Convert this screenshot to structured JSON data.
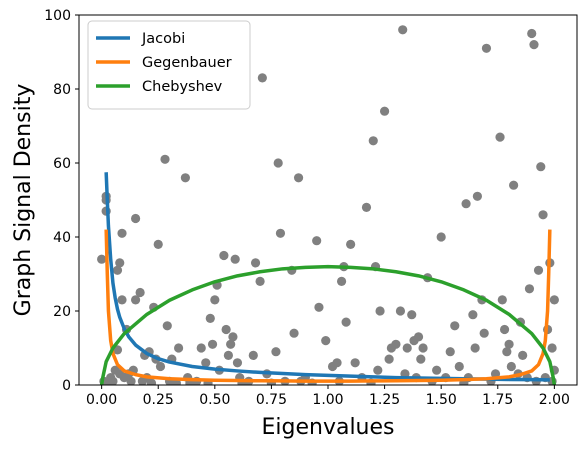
{
  "chart_data": {
    "type": "scatter",
    "title": "",
    "xlabel": "Eigenvalues",
    "ylabel": "Graph Signal Density",
    "xlim": [
      -0.1,
      2.1
    ],
    "ylim": [
      0,
      100
    ],
    "xticks": [
      "0.00",
      "0.25",
      "0.50",
      "0.75",
      "1.00",
      "1.25",
      "1.50",
      "1.75",
      "2.00"
    ],
    "yticks": [
      "0",
      "20",
      "40",
      "60",
      "80",
      "100"
    ],
    "grid": false,
    "legend_position": "top-left",
    "scatter_color": "#808080",
    "scatter_points": [
      [
        0.0,
        34
      ],
      [
        0.01,
        1
      ],
      [
        0.02,
        47
      ],
      [
        0.02,
        50
      ],
      [
        0.02,
        51
      ],
      [
        0.03,
        0.5
      ],
      [
        0.04,
        2
      ],
      [
        0.05,
        1
      ],
      [
        0.06,
        4
      ],
      [
        0.07,
        31
      ],
      [
        0.07,
        9.5
      ],
      [
        0.08,
        3
      ],
      [
        0.08,
        33
      ],
      [
        0.09,
        23
      ],
      [
        0.09,
        41
      ],
      [
        0.1,
        2
      ],
      [
        0.11,
        15
      ],
      [
        0.12,
        3
      ],
      [
        0.13,
        1
      ],
      [
        0.14,
        4
      ],
      [
        0.15,
        23
      ],
      [
        0.15,
        45
      ],
      [
        0.17,
        25
      ],
      [
        0.18,
        1
      ],
      [
        0.19,
        8
      ],
      [
        0.2,
        2
      ],
      [
        0.21,
        9
      ],
      [
        0.22,
        0.5
      ],
      [
        0.23,
        21
      ],
      [
        0.24,
        7
      ],
      [
        0.25,
        38
      ],
      [
        0.26,
        5
      ],
      [
        0.28,
        61
      ],
      [
        0.29,
        16
      ],
      [
        0.3,
        1
      ],
      [
        0.31,
        7
      ],
      [
        0.33,
        0.5
      ],
      [
        0.34,
        10
      ],
      [
        0.37,
        56
      ],
      [
        0.38,
        2
      ],
      [
        0.39,
        0.5
      ],
      [
        0.42,
        1
      ],
      [
        0.44,
        10
      ],
      [
        0.46,
        6
      ],
      [
        0.47,
        0.5
      ],
      [
        0.48,
        18
      ],
      [
        0.49,
        11
      ],
      [
        0.5,
        23
      ],
      [
        0.51,
        27
      ],
      [
        0.52,
        4
      ],
      [
        0.54,
        35
      ],
      [
        0.55,
        15
      ],
      [
        0.56,
        8
      ],
      [
        0.57,
        11
      ],
      [
        0.58,
        13
      ],
      [
        0.59,
        34
      ],
      [
        0.6,
        6
      ],
      [
        0.61,
        2
      ],
      [
        0.62,
        0.5
      ],
      [
        0.65,
        1
      ],
      [
        0.67,
        8
      ],
      [
        0.68,
        33
      ],
      [
        0.7,
        28
      ],
      [
        0.71,
        83
      ],
      [
        0.73,
        3
      ],
      [
        0.75,
        0.5
      ],
      [
        0.77,
        9
      ],
      [
        0.78,
        60
      ],
      [
        0.79,
        41
      ],
      [
        0.81,
        1
      ],
      [
        0.84,
        31
      ],
      [
        0.85,
        14
      ],
      [
        0.87,
        56
      ],
      [
        0.88,
        1
      ],
      [
        0.9,
        2
      ],
      [
        0.93,
        0.5
      ],
      [
        0.95,
        39
      ],
      [
        0.96,
        21
      ],
      [
        0.99,
        12
      ],
      [
        1.02,
        5
      ],
      [
        1.04,
        6
      ],
      [
        1.05,
        1
      ],
      [
        1.06,
        28
      ],
      [
        1.07,
        32
      ],
      [
        1.08,
        17
      ],
      [
        1.1,
        38
      ],
      [
        1.12,
        6
      ],
      [
        1.15,
        2
      ],
      [
        1.17,
        48
      ],
      [
        1.19,
        0.5
      ],
      [
        1.2,
        66
      ],
      [
        1.21,
        32
      ],
      [
        1.22,
        4
      ],
      [
        1.23,
        20
      ],
      [
        1.25,
        74
      ],
      [
        1.27,
        7
      ],
      [
        1.28,
        10
      ],
      [
        1.3,
        11
      ],
      [
        1.32,
        20
      ],
      [
        1.33,
        96
      ],
      [
        1.34,
        3
      ],
      [
        1.35,
        10
      ],
      [
        1.37,
        19
      ],
      [
        1.38,
        12
      ],
      [
        1.39,
        2
      ],
      [
        1.4,
        13
      ],
      [
        1.41,
        7
      ],
      [
        1.42,
        10
      ],
      [
        1.44,
        29
      ],
      [
        1.46,
        1
      ],
      [
        1.48,
        4
      ],
      [
        1.5,
        40
      ],
      [
        1.52,
        2
      ],
      [
        1.54,
        9
      ],
      [
        1.56,
        16
      ],
      [
        1.58,
        5
      ],
      [
        1.6,
        0.5
      ],
      [
        1.61,
        49
      ],
      [
        1.62,
        2
      ],
      [
        1.64,
        19
      ],
      [
        1.65,
        10
      ],
      [
        1.66,
        51
      ],
      [
        1.68,
        23
      ],
      [
        1.69,
        14
      ],
      [
        1.7,
        91
      ],
      [
        1.72,
        1
      ],
      [
        1.74,
        3
      ],
      [
        1.76,
        67
      ],
      [
        1.77,
        23
      ],
      [
        1.78,
        15
      ],
      [
        1.79,
        9
      ],
      [
        1.8,
        11
      ],
      [
        1.81,
        5
      ],
      [
        1.82,
        54
      ],
      [
        1.84,
        3
      ],
      [
        1.85,
        17
      ],
      [
        1.86,
        8
      ],
      [
        1.88,
        2
      ],
      [
        1.89,
        26
      ],
      [
        1.9,
        95
      ],
      [
        1.91,
        92
      ],
      [
        1.92,
        1
      ],
      [
        1.93,
        31
      ],
      [
        1.94,
        59
      ],
      [
        1.95,
        46
      ],
      [
        1.96,
        2
      ],
      [
        1.97,
        15
      ],
      [
        1.98,
        33
      ],
      [
        1.99,
        10
      ],
      [
        2.0,
        23
      ],
      [
        2.0,
        4
      ],
      [
        1.99,
        1
      ]
    ],
    "series": [
      {
        "name": "Jacobi",
        "color": "#1f77b4",
        "x": [
          0.02,
          0.025,
          0.03,
          0.04,
          0.05,
          0.06,
          0.07,
          0.08,
          0.1,
          0.12,
          0.15,
          0.2,
          0.25,
          0.3,
          0.4,
          0.5,
          0.6,
          0.7,
          0.8,
          0.9,
          1.0,
          1.1,
          1.2,
          1.3,
          1.4,
          1.5,
          1.6,
          1.7,
          1.8,
          1.9,
          1.98
        ],
        "values": [
          57.5,
          50,
          43,
          34,
          27.5,
          23.5,
          20.5,
          18.3,
          15.2,
          13.0,
          10.8,
          8.5,
          7.1,
          6.2,
          5.0,
          4.3,
          3.8,
          3.4,
          3.1,
          2.8,
          2.6,
          2.4,
          2.2,
          2.0,
          1.9,
          1.8,
          1.7,
          1.6,
          1.5,
          1.45,
          1.4
        ]
      },
      {
        "name": "Gegenbauer",
        "color": "#ff7f0e",
        "x": [
          0.02,
          0.025,
          0.03,
          0.04,
          0.05,
          0.07,
          0.1,
          0.15,
          0.2,
          0.3,
          0.4,
          0.5,
          0.6,
          0.7,
          0.8,
          0.9,
          1.0,
          1.1,
          1.2,
          1.3,
          1.4,
          1.5,
          1.6,
          1.7,
          1.8,
          1.85,
          1.9,
          1.93,
          1.95,
          1.96,
          1.97,
          1.975,
          1.98
        ],
        "values": [
          42,
          30,
          20,
          12,
          8.5,
          5.5,
          3.8,
          2.8,
          2.2,
          1.7,
          1.45,
          1.3,
          1.2,
          1.15,
          1.1,
          1.05,
          1.05,
          1.05,
          1.1,
          1.15,
          1.2,
          1.3,
          1.45,
          1.7,
          2.2,
          2.8,
          3.8,
          5.5,
          8.5,
          12,
          20,
          30,
          42
        ]
      },
      {
        "name": "Chebyshev",
        "color": "#2ca02c",
        "x": [
          0.0,
          0.005,
          0.02,
          0.05,
          0.1,
          0.2,
          0.3,
          0.4,
          0.5,
          0.6,
          0.7,
          0.8,
          0.9,
          1.0,
          1.1,
          1.2,
          1.3,
          1.4,
          1.5,
          1.6,
          1.7,
          1.8,
          1.9,
          1.95,
          1.98,
          1.995,
          2.0
        ],
        "values": [
          0,
          2,
          6.3,
          10.0,
          13.9,
          19.1,
          22.9,
          25.7,
          27.9,
          29.5,
          30.6,
          31.4,
          31.8,
          32.0,
          31.8,
          31.4,
          30.6,
          29.5,
          27.9,
          25.7,
          22.9,
          19.1,
          13.9,
          10.0,
          6.3,
          2,
          0
        ]
      }
    ]
  }
}
